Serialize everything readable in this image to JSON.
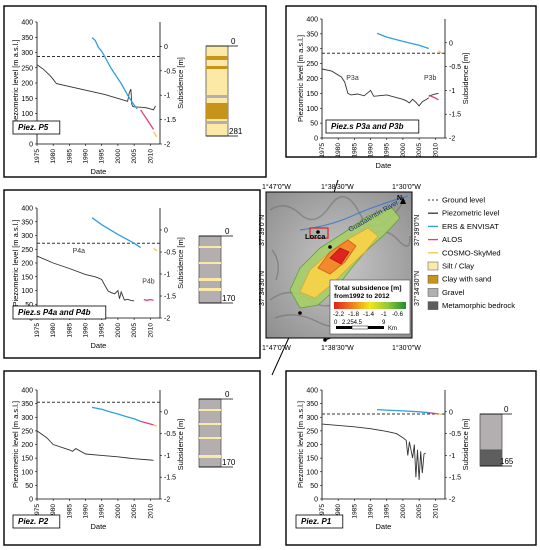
{
  "common": {
    "y_left_label": "Piezometric level [m a.s.l.]",
    "y_right_label": "Subsidence [m]",
    "x_label": "Date",
    "x_ticks": [
      "1975",
      "1980",
      "1985",
      "1990",
      "1995",
      "2000",
      "2005",
      "2010"
    ],
    "y_left_ticks": [
      "0",
      "50",
      "100",
      "150",
      "200",
      "250",
      "300",
      "350",
      "400"
    ],
    "y_right_ticks": [
      "0",
      "-0.5",
      "-1",
      "-1.5",
      "-2"
    ]
  },
  "chart_data": [
    {
      "type": "line",
      "title": "Piez. P5",
      "x_range": [
        1975,
        2013
      ],
      "y_left_range": [
        0,
        400
      ],
      "y_right_range": [
        -2,
        0.5
      ],
      "ground_level": 287,
      "series": [
        {
          "name": "Piezometric level",
          "color": "#333333",
          "x": [
            1975,
            1977,
            1979,
            1980,
            1981,
            1996,
            2003,
            2003.5,
            2004,
            2004.3,
            2004.6,
            2005,
            2008,
            2009,
            2011,
            2011.6
          ],
          "y": [
            260,
            245,
            225,
            212,
            198,
            162,
            140,
            168,
            180,
            130,
            123,
            122,
            120,
            118,
            112,
            125
          ]
        },
        {
          "name": "ERS & ENVISAT",
          "color": "#2f9fe0",
          "x": [
            1992,
            1993,
            1993.5,
            1994,
            1995,
            1996,
            1997,
            1998,
            1999,
            2000,
            2001,
            2002,
            2003,
            2004,
            2005,
            2006
          ],
          "y": [
            0.18,
            0.12,
            0.05,
            -0.02,
            -0.1,
            -0.22,
            -0.34,
            -0.46,
            -0.56,
            -0.66,
            -0.76,
            -0.88,
            -1.0,
            -1.1,
            -1.2,
            -1.28
          ]
        },
        {
          "name": "ALOS",
          "color": "#e0407a",
          "x": [
            2007,
            2008,
            2009,
            2010,
            2011
          ],
          "y": [
            -1.3,
            -1.4,
            -1.5,
            -1.6,
            -1.7
          ]
        },
        {
          "name": "COSMO-SkyMed",
          "color": "#f0c44a",
          "x": [
            2011,
            2011.5,
            2012
          ],
          "y": [
            -1.75,
            -1.8,
            -1.85
          ]
        }
      ],
      "column": {
        "top": "0",
        "bottom": "281"
      }
    },
    {
      "type": "line",
      "title": "Piez.s P3a and P3b",
      "x_range": [
        1975,
        2013
      ],
      "y_left_range": [
        0,
        400
      ],
      "y_right_range": [
        -2,
        0.5
      ],
      "ground_level": 285,
      "annotations": [
        "P3a",
        "P3b"
      ],
      "series": [
        {
          "name": "Piezometric level",
          "color": "#333333",
          "x": [
            1975,
            1978,
            1981,
            1982,
            1983,
            1984,
            1986,
            1988,
            1990,
            1991,
            1995,
            2000,
            2001,
            2002,
            2003,
            2004,
            2005,
            2006,
            2007,
            2008
          ],
          "y": [
            232,
            225,
            205,
            188,
            150,
            145,
            148,
            142,
            160,
            140,
            145,
            130,
            125,
            118,
            130,
            120,
            108,
            122,
            128,
            135
          ]
        },
        {
          "name": "Piezometric level",
          "color": "#333333",
          "x": [
            2008,
            2009,
            2010,
            2011
          ],
          "y": [
            140,
            145,
            148,
            150
          ]
        },
        {
          "name": "ERS & ENVISAT",
          "color": "#2f9fe0",
          "x": [
            1992,
            1995,
            2000,
            2005,
            2008
          ],
          "y": [
            0.2,
            0.12,
            0.03,
            -0.05,
            -0.12
          ]
        },
        {
          "name": "ALOS",
          "color": "#e0407a",
          "x": [
            2008,
            2009,
            2010,
            2011
          ],
          "y": [
            -1.1,
            -1.13,
            -1.16,
            -1.2
          ]
        },
        {
          "name": "COSMO-SkyMed",
          "color": "#f0c44a",
          "x": [
            2011,
            2012
          ],
          "y": [
            -0.17,
            -0.22
          ]
        }
      ]
    },
    {
      "type": "line",
      "title": "Piez.s P4a and P4b",
      "x_range": [
        1975,
        2013
      ],
      "y_left_range": [
        0,
        400
      ],
      "y_right_range": [
        -2,
        0.5
      ],
      "ground_level": 272,
      "annotations": [
        "P4a",
        "P4b"
      ],
      "series": [
        {
          "name": "Piezometric level",
          "color": "#333333",
          "x": [
            1975,
            1980,
            1985,
            1990,
            1993,
            1994,
            1995,
            1996,
            1997,
            1998,
            1999,
            2000,
            2000.5,
            2001,
            2002,
            2003,
            2004,
            2005
          ],
          "y": [
            225,
            200,
            180,
            158,
            150,
            145,
            140,
            118,
            98,
            92,
            88,
            100,
            70,
            95,
            65,
            68,
            64,
            62
          ]
        },
        {
          "name": "ERS & ENVISAT",
          "color": "#2f9fe0",
          "x": [
            1992,
            1995,
            2000,
            2005,
            2007
          ],
          "y": [
            0.28,
            0.12,
            -0.1,
            -0.3,
            -0.4
          ]
        },
        {
          "name": "ALOS",
          "color": "#e0407a",
          "x": [
            2008,
            2009,
            2010,
            2011
          ],
          "y": [
            -1.58,
            -1.6,
            -1.58,
            -1.6
          ]
        },
        {
          "name": "COSMO-SkyMed",
          "color": "#f0c44a",
          "x": [
            2011,
            2012
          ],
          "y": [
            -0.42,
            -0.47
          ]
        }
      ],
      "column": {
        "top": "0",
        "bottom": "170"
      }
    },
    {
      "type": "line",
      "title": "Piez. P2",
      "x_range": [
        1975,
        2013
      ],
      "y_left_range": [
        0,
        400
      ],
      "y_right_range": [
        -2,
        0.5
      ],
      "ground_level": 355,
      "series": [
        {
          "name": "Piezometric level",
          "color": "#333333",
          "x": [
            1975,
            1978,
            1980,
            1985,
            1986,
            1987,
            1990,
            1995,
            2000,
            2005,
            2010,
            2011
          ],
          "y": [
            250,
            225,
            200,
            180,
            175,
            185,
            165,
            160,
            155,
            148,
            143,
            142
          ]
        },
        {
          "name": "ERS & ENVISAT",
          "color": "#2f9fe0",
          "x": [
            1992,
            1995,
            1998,
            2000,
            2003,
            2005,
            2007
          ],
          "y": [
            0.1,
            0.06,
            -0.01,
            -0.05,
            -0.12,
            -0.16,
            -0.22
          ]
        },
        {
          "name": "ALOS",
          "color": "#e0407a",
          "x": [
            2007,
            2008,
            2009,
            2010,
            2011
          ],
          "y": [
            -0.22,
            -0.24,
            -0.26,
            -0.28,
            -0.3
          ]
        },
        {
          "name": "COSMO-SkyMed",
          "color": "#f0c44a",
          "x": [
            2011,
            2012
          ],
          "y": [
            -0.3,
            -0.33
          ]
        }
      ],
      "column": {
        "top": "0",
        "bottom": "170"
      }
    },
    {
      "type": "line",
      "title": "Piez. P1",
      "x_range": [
        1975,
        2013
      ],
      "y_left_range": [
        0,
        400
      ],
      "y_right_range": [
        -2,
        0.5
      ],
      "ground_level": 312,
      "series": [
        {
          "name": "Piezometric level",
          "color": "#333333",
          "x": [
            1975,
            1980,
            1985,
            1990,
            1995,
            1998,
            2000,
            2001,
            2001.5,
            2002,
            2003,
            2003.5,
            2004,
            2004.5,
            2005,
            2005.5,
            2006,
            2006.5,
            2007
          ],
          "y": [
            275,
            270,
            265,
            258,
            248,
            240,
            225,
            215,
            160,
            210,
            150,
            200,
            80,
            180,
            70,
            175,
            95,
            165,
            168
          ]
        },
        {
          "name": "ERS & ENVISAT",
          "color": "#2f9fe0",
          "x": [
            1992,
            1995,
            2000,
            2005,
            2008
          ],
          "y": [
            0.05,
            0.04,
            0.02,
            0.0,
            -0.02
          ]
        },
        {
          "name": "ALOS",
          "color": "#e0407a",
          "x": [
            2008,
            2009,
            2010,
            2011
          ],
          "y": [
            -0.02,
            -0.03,
            -0.04,
            -0.05
          ]
        },
        {
          "name": "COSMO-SkyMed",
          "color": "#f0c44a",
          "x": [
            2011,
            2012
          ],
          "y": [
            -0.05,
            -0.06
          ]
        }
      ],
      "column": {
        "top": "0",
        "bottom": "165"
      }
    }
  ],
  "map": {
    "coords_top": [
      "1°47'0\"W",
      "1°38'30\"W",
      "1°30'0\"W"
    ],
    "coords_bottom": [
      "1°47'0\"W",
      "1°38'30\"W",
      "1°30'0\"W"
    ],
    "coords_left": [
      "37°39'0\"N",
      "37°34'30\"N"
    ],
    "coords_right": [
      "37°39'0\"N",
      "37°34'30\"N"
    ],
    "place_lorca": "Lorca",
    "river": "Guadalentín River",
    "north": "N",
    "legend_title": "Total subsidence [m]",
    "legend_subtitle": "from1992 to 2012",
    "legend_ticks": [
      "-2.2",
      "-1.8",
      "-1.4",
      "-1",
      "-0.6"
    ],
    "scale_ticks": [
      "0",
      "2.254.5",
      "9"
    ],
    "scale_unit": "Km"
  },
  "legend": [
    {
      "label": "Ground level",
      "kind": "dash",
      "color": "#333333"
    },
    {
      "label": "Piezometric level",
      "kind": "line",
      "color": "#333333"
    },
    {
      "label": "ERS & ENVISAT",
      "kind": "line",
      "color": "#2f9fe0"
    },
    {
      "label": "ALOS",
      "kind": "line",
      "color": "#e0407a"
    },
    {
      "label": "COSMO-SkyMed",
      "kind": "line",
      "color": "#f0c44a"
    },
    {
      "label": "Silt / Clay",
      "kind": "box",
      "color": "#fde9a6"
    },
    {
      "label": "Clay with sand",
      "kind": "box",
      "color": "#c8931a"
    },
    {
      "label": "Gravel",
      "kind": "box",
      "color": "#b3aeb0"
    },
    {
      "label": "Metamorphic bedrock",
      "kind": "box",
      "color": "#5e5e5e"
    }
  ]
}
